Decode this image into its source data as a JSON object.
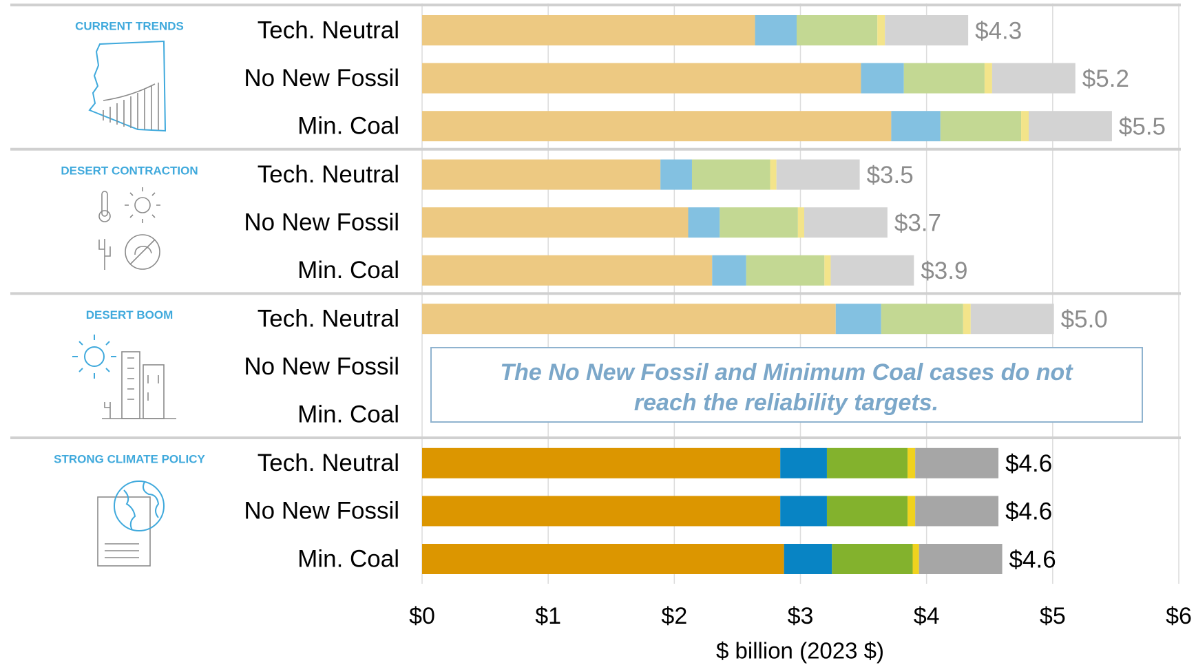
{
  "chart_data": {
    "type": "stacked-bar-horizontal",
    "xlabel": "$ billion (2023 $)",
    "annotation": "The No New Fossil and Minimum Coal cases do not reach the reliability targets.",
    "categories": [
      "Tech. Neutral",
      "No New Fossil",
      "Min. Coal",
      "Tech. Neutral",
      "No New Fossil",
      "Min. Coal",
      "Tech. Neutral",
      "No New Fossil",
      "Min. Coal",
      "Tech. Neutral",
      "No New Fossil",
      "Min. Coal"
    ],
    "groups": [
      {
        "name": "CURRENT TRENDS",
        "colors": [
          "#edc982",
          "#83c1e1",
          "#c3d893",
          "#f3e48a",
          "#d3d3d3"
        ],
        "label_color": "#8c8c8c"
      },
      {
        "name": "DESERT CONTRACTION",
        "colors": [
          "#edc982",
          "#83c1e1",
          "#c3d893",
          "#f3e48a",
          "#d3d3d3"
        ],
        "label_color": "#8c8c8c"
      },
      {
        "name": "DESERT BOOM",
        "colors": [
          "#edc982",
          "#83c1e1",
          "#c3d893",
          "#f3e48a",
          "#d3d3d3"
        ],
        "label_color": "#8c8c8c"
      },
      {
        "name": "STRONG CLIMATE POLICY",
        "colors": [
          "#dc9600",
          "#0884c4",
          "#83b22d",
          "#f0d21e",
          "#a6a6a6"
        ],
        "label_color": "#000000"
      }
    ],
    "series": [
      {
        "values": [
          2.64,
          3.48,
          3.72,
          1.89,
          2.11,
          2.3,
          3.28,
          null,
          null,
          2.84,
          2.84,
          2.87
        ]
      },
      {
        "values": [
          0.33,
          0.34,
          0.39,
          0.25,
          0.25,
          0.27,
          0.36,
          null,
          null,
          0.37,
          0.37,
          0.38
        ]
      },
      {
        "values": [
          0.64,
          0.64,
          0.64,
          0.62,
          0.62,
          0.62,
          0.65,
          null,
          null,
          0.64,
          0.64,
          0.64
        ]
      },
      {
        "values": [
          0.06,
          0.06,
          0.06,
          0.05,
          0.05,
          0.05,
          0.06,
          null,
          null,
          0.06,
          0.06,
          0.05
        ]
      },
      {
        "values": [
          0.66,
          0.66,
          0.66,
          0.66,
          0.66,
          0.66,
          0.66,
          null,
          null,
          0.66,
          0.66,
          0.66
        ]
      }
    ],
    "totals": [
      4.3,
      5.2,
      5.5,
      3.5,
      3.7,
      3.9,
      5.0,
      null,
      null,
      4.6,
      4.6,
      4.6
    ],
    "total_labels": [
      "$4.3",
      "$5.2",
      "$5.5",
      "$3.5",
      "$3.7",
      "$3.9",
      "$5.0",
      null,
      null,
      "$4.6",
      "$4.6",
      "$4.6"
    ],
    "xlim": [
      0,
      6
    ],
    "xticks": [
      {
        "value": 0,
        "label": "$0"
      },
      {
        "value": 1,
        "label": "$1"
      },
      {
        "value": 2,
        "label": "$2"
      },
      {
        "value": 3,
        "label": "$3"
      },
      {
        "value": 4,
        "label": "$4"
      },
      {
        "value": 5,
        "label": "$5"
      },
      {
        "value": 6,
        "label": "$6"
      }
    ],
    "grid": true
  }
}
